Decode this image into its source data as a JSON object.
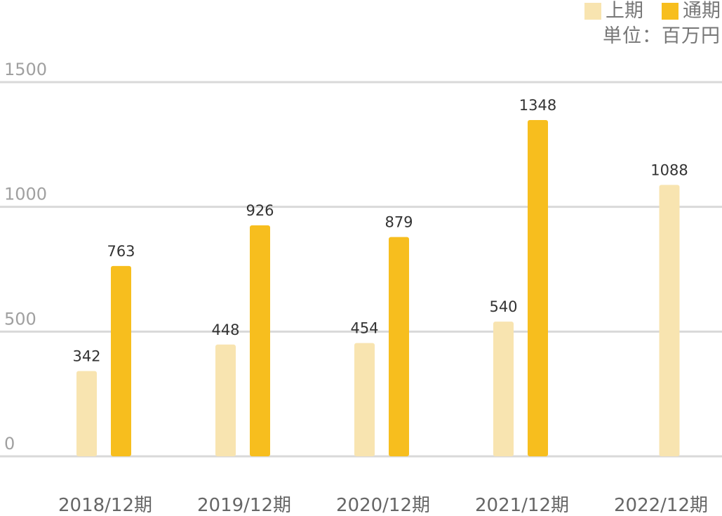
{
  "chart_data": {
    "type": "bar",
    "categories": [
      "2018/12期",
      "2019/12期",
      "2020/12期",
      "2021/12期",
      "2022/12期"
    ],
    "series": [
      {
        "name": "上期",
        "color": "#f8e4b0",
        "values": [
          342,
          448,
          454,
          540,
          1088
        ]
      },
      {
        "name": "通期",
        "color": "#f7be1e",
        "values": [
          763,
          926,
          879,
          1348,
          null
        ]
      }
    ],
    "unit_label": "単位：百万円",
    "yticks": [
      0,
      500,
      1000,
      1500
    ],
    "ylim": [
      0,
      1500
    ],
    "grid": true,
    "legend_position": "top-right"
  }
}
